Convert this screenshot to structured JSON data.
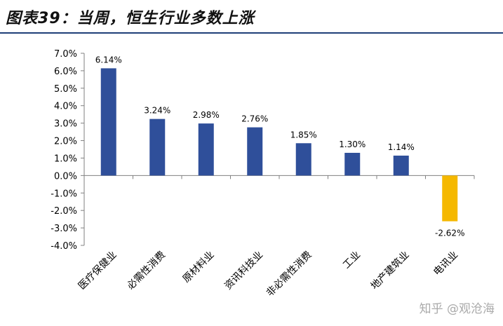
{
  "title": "图表39：当周，恒生行业多数上涨",
  "watermark": "知乎 @观沧海",
  "colors": {
    "positive": "#2f4f9a",
    "negative": "#f5b800",
    "title_rule": "#1f3f78"
  },
  "chart_data": {
    "type": "bar",
    "categories": [
      "医疗保健业",
      "必需性消费",
      "原材料业",
      "资讯科技业",
      "非必需性消费",
      "工业",
      "地产建筑业",
      "电讯业"
    ],
    "values": [
      6.14,
      3.24,
      2.98,
      2.76,
      1.85,
      1.3,
      1.14,
      -2.62
    ],
    "data_labels": [
      "6.14%",
      "3.24%",
      "2.98%",
      "2.76%",
      "1.85%",
      "1.30%",
      "1.14%",
      "-2.62%"
    ],
    "ylim": [
      -4.0,
      7.0
    ],
    "yticks": [
      7.0,
      6.0,
      5.0,
      4.0,
      3.0,
      2.0,
      1.0,
      0.0,
      -1.0,
      -2.0,
      -3.0,
      -4.0
    ],
    "ytick_labels": [
      "7.0%",
      "6.0%",
      "5.0%",
      "4.0%",
      "3.0%",
      "2.0%",
      "1.0%",
      "0.0%",
      "-1.0%",
      "-2.0%",
      "-3.0%",
      "-4.0%"
    ],
    "grid": false,
    "legend": "none"
  }
}
